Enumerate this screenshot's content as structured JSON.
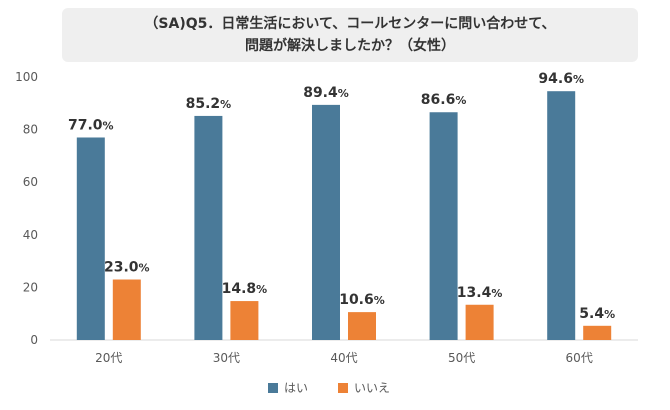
{
  "chart_data": {
    "type": "bar",
    "title_lines": [
      "（SA)Q5．日常生活において、コールセンターに問い合わせて、",
      "問題が解決しましたか？（女性）"
    ],
    "categories": [
      "20代",
      "30代",
      "40代",
      "50代",
      "60代"
    ],
    "series": [
      {
        "name": "はい",
        "values": [
          77.0,
          85.2,
          89.4,
          86.6,
          94.6
        ],
        "color": "#4a7a99"
      },
      {
        "name": "いいえ",
        "values": [
          23.0,
          14.8,
          10.6,
          13.4,
          5.4
        ],
        "color": "#ed8236"
      }
    ],
    "value_suffix": "%",
    "ylim": [
      0,
      100
    ],
    "yticks": [
      0,
      20,
      40,
      60,
      80,
      100
    ],
    "grid": false,
    "legend_position": "bottom"
  }
}
